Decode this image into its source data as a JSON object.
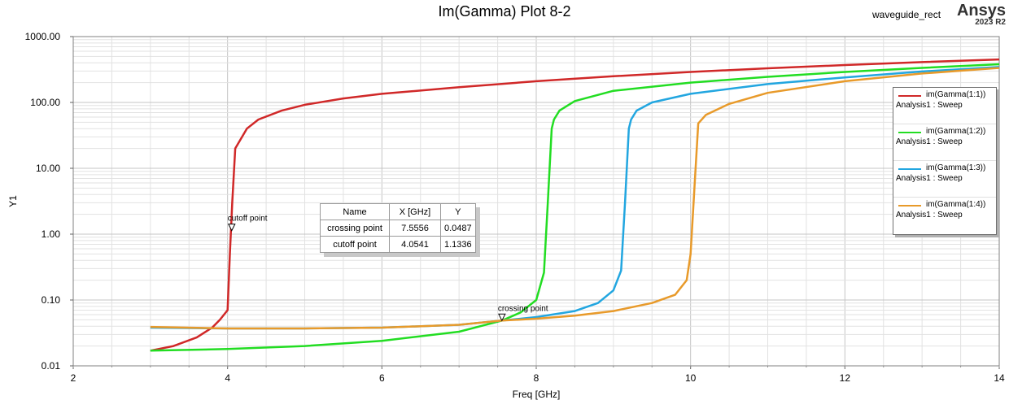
{
  "header": {
    "title": "Im(Gamma) Plot 8-2",
    "project": "waveguide_rect",
    "brand": "Ansys",
    "version": "2023 R2"
  },
  "chart_data": {
    "type": "line",
    "title": "Im(Gamma) Plot 8-2",
    "xlabel": "Freq [GHz]",
    "ylabel": "Y1",
    "xlim": [
      2,
      14
    ],
    "ylim": [
      0.01,
      1000
    ],
    "yscale": "log",
    "x_ticks": [
      "2",
      "4",
      "6",
      "8",
      "10",
      "12",
      "14"
    ],
    "y_ticks": [
      "0.01",
      "0.10",
      "1.00",
      "10.00",
      "100.00",
      "1000.00"
    ],
    "grid": true,
    "legend_position": "right",
    "series": [
      {
        "name": "im(Gamma(1:1))",
        "subtitle": "Analysis1 : Sweep",
        "color": "#d02828",
        "x": [
          3.0,
          3.3,
          3.6,
          3.8,
          3.9,
          4.0,
          4.03,
          4.06,
          4.1,
          4.25,
          4.4,
          4.7,
          5.0,
          5.5,
          6.0,
          7.0,
          8.0,
          9.0,
          10.0,
          11.0,
          12.0,
          13.0,
          14.0
        ],
        "y": [
          0.017,
          0.02,
          0.027,
          0.038,
          0.05,
          0.07,
          0.5,
          3.0,
          20.0,
          40.0,
          55.0,
          75.0,
          92.0,
          115.0,
          135.0,
          170.0,
          210.0,
          250.0,
          290.0,
          330.0,
          370.0,
          410.0,
          450.0
        ]
      },
      {
        "name": "im(Gamma(1:2))",
        "subtitle": "Analysis1 : Sweep",
        "color": "#22dd22",
        "x": [
          3.0,
          4.0,
          5.0,
          6.0,
          7.0,
          7.5556,
          7.8,
          8.0,
          8.1,
          8.15,
          8.2,
          8.23,
          8.3,
          8.5,
          9.0,
          10.0,
          11.0,
          12.0,
          13.0,
          14.0
        ],
        "y": [
          0.017,
          0.018,
          0.02,
          0.024,
          0.033,
          0.0487,
          0.065,
          0.1,
          0.26,
          3.0,
          40.0,
          55.0,
          75.0,
          105.0,
          150.0,
          200.0,
          245.0,
          290.0,
          335.0,
          380.0
        ]
      },
      {
        "name": "im(Gamma(1:3))",
        "subtitle": "Analysis1 : Sweep",
        "color": "#22a6e0",
        "x": [
          3.0,
          4.0,
          5.0,
          6.0,
          7.0,
          7.5556,
          8.0,
          8.5,
          8.8,
          9.0,
          9.1,
          9.15,
          9.2,
          9.23,
          9.3,
          9.5,
          10.0,
          11.0,
          12.0,
          13.0,
          14.0
        ],
        "y": [
          0.038,
          0.037,
          0.037,
          0.038,
          0.042,
          0.0487,
          0.055,
          0.068,
          0.09,
          0.14,
          0.28,
          3.0,
          40.0,
          55.0,
          75.0,
          100.0,
          135.0,
          190.0,
          240.0,
          295.0,
          345.0
        ]
      },
      {
        "name": "im(Gamma(1:4))",
        "subtitle": "Analysis1 : Sweep",
        "color": "#e89a2a",
        "x": [
          3.0,
          4.0,
          5.0,
          6.0,
          7.0,
          7.5556,
          8.0,
          8.5,
          9.0,
          9.5,
          9.8,
          9.95,
          10.0,
          10.05,
          10.1,
          10.2,
          10.5,
          11.0,
          12.0,
          13.0,
          14.0
        ],
        "y": [
          0.039,
          0.037,
          0.037,
          0.038,
          0.042,
          0.0487,
          0.052,
          0.058,
          0.068,
          0.09,
          0.12,
          0.2,
          0.5,
          5.0,
          48.0,
          65.0,
          95.0,
          140.0,
          210.0,
          275.0,
          335.0
        ]
      }
    ],
    "markers": [
      {
        "name": "cutoff point",
        "x": 4.0541,
        "y": 1.1336
      },
      {
        "name": "crossing point",
        "x": 7.5556,
        "y": 0.0487
      }
    ],
    "marker_table": {
      "headers": [
        "Name",
        "X [GHz]",
        "Y"
      ],
      "rows": [
        [
          "crossing point",
          "7.5556",
          "0.0487"
        ],
        [
          "cutoff point",
          "4.0541",
          "1.1336"
        ]
      ]
    }
  }
}
